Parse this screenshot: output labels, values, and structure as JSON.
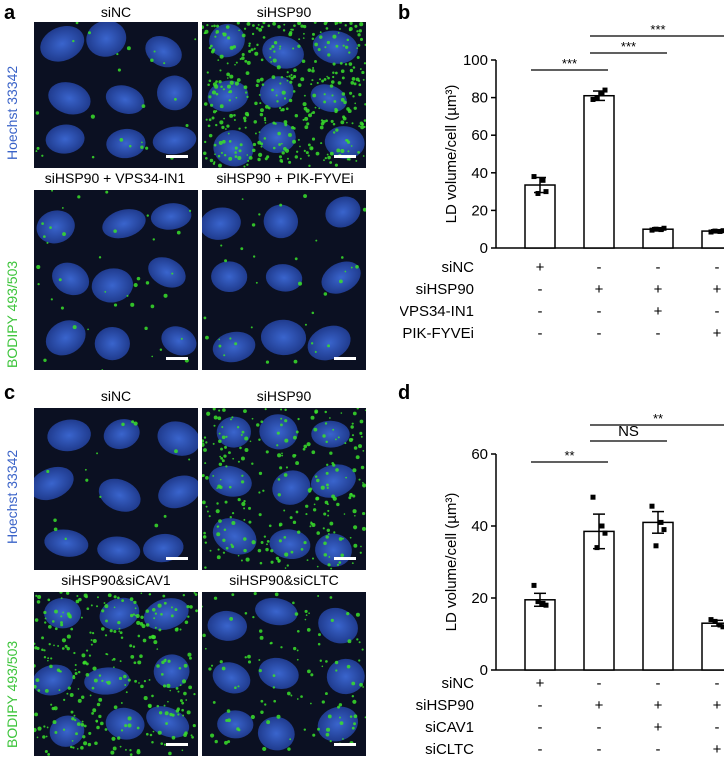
{
  "panel_letters": {
    "a": "a",
    "b": "b",
    "c": "c",
    "d": "d"
  },
  "panel_a": {
    "titles": [
      "siNC",
      "siHSP90",
      "siHSP90 + VPS34-IN1",
      "siHSP90 + PIK-FYVEi"
    ],
    "stain_hoechst": "Hoechst 33342",
    "stain_bodipy": "BODIPY 493/503",
    "colors": {
      "nuclei": "#2f56c8",
      "lipid": "#39e02a",
      "bg": "#0b1022",
      "hoechst_text": "#3a63c8",
      "bodipy_text": "#3cc43a"
    }
  },
  "panel_c": {
    "titles": [
      "siNC",
      "siHSP90",
      "siHSP90&siCAV1",
      "siHSP90&siCLTC"
    ],
    "stain_hoechst": "Hoechst 33342",
    "stain_bodipy": "BODIPY 493/503"
  },
  "chart_data": [
    {
      "type": "bar",
      "panel": "b",
      "ylabel": "LD volume/cell (µm³)",
      "ylim": [
        0,
        100
      ],
      "yticks": [
        "0",
        "20",
        "40",
        "60",
        "80",
        "100"
      ],
      "values": [
        33.5,
        81,
        10,
        9
      ],
      "errors": [
        4,
        2.5,
        0.8,
        0.7
      ],
      "points": [
        [
          38,
          30,
          29,
          36
        ],
        [
          79,
          84,
          80,
          82
        ],
        [
          9.5,
          10.5,
          10,
          9.8
        ],
        [
          8.5,
          9.2,
          9,
          8.8
        ]
      ],
      "conditions": [
        {
          "label": "siNC",
          "signs": [
            "+",
            "-",
            "-",
            "-"
          ]
        },
        {
          "label": "siHSP90",
          "signs": [
            "-",
            "+",
            "+",
            "+"
          ]
        },
        {
          "label": "VPS34-IN1",
          "signs": [
            "-",
            "-",
            "+",
            "-"
          ]
        },
        {
          "label": "PIK-FYVEi",
          "signs": [
            "-",
            "-",
            "-",
            "+"
          ]
        }
      ],
      "significance": [
        {
          "from": 0,
          "to": 1,
          "label": "***"
        },
        {
          "from": 1,
          "to": 2,
          "label": "***"
        },
        {
          "from": 1,
          "to": 3,
          "label": "***"
        }
      ]
    },
    {
      "type": "bar",
      "panel": "d",
      "ylabel": "LD volume/cell (µm³)",
      "ylim": [
        0,
        60
      ],
      "yticks": [
        "0",
        "20",
        "40",
        "60"
      ],
      "values": [
        19.5,
        38.5,
        41,
        13
      ],
      "errors": [
        1.8,
        4.8,
        3,
        0.8
      ],
      "points": [
        [
          23.5,
          18,
          19,
          18.5
        ],
        [
          48,
          38,
          34,
          40
        ],
        [
          45.5,
          39,
          34.5,
          41
        ],
        [
          14,
          12,
          13.5,
          12.5
        ]
      ],
      "conditions": [
        {
          "label": "siNC",
          "signs": [
            "+",
            "-",
            "-",
            "-"
          ]
        },
        {
          "label": "siHSP90",
          "signs": [
            "-",
            "+",
            "+",
            "+"
          ]
        },
        {
          "label": "siCAV1",
          "signs": [
            "-",
            "-",
            "+",
            "-"
          ]
        },
        {
          "label": "siCLTC",
          "signs": [
            "-",
            "-",
            "-",
            "+"
          ]
        }
      ],
      "significance": [
        {
          "from": 0,
          "to": 1,
          "label": "**"
        },
        {
          "from": 1,
          "to": 2,
          "label": "NS"
        },
        {
          "from": 1,
          "to": 3,
          "label": "**"
        }
      ]
    }
  ]
}
